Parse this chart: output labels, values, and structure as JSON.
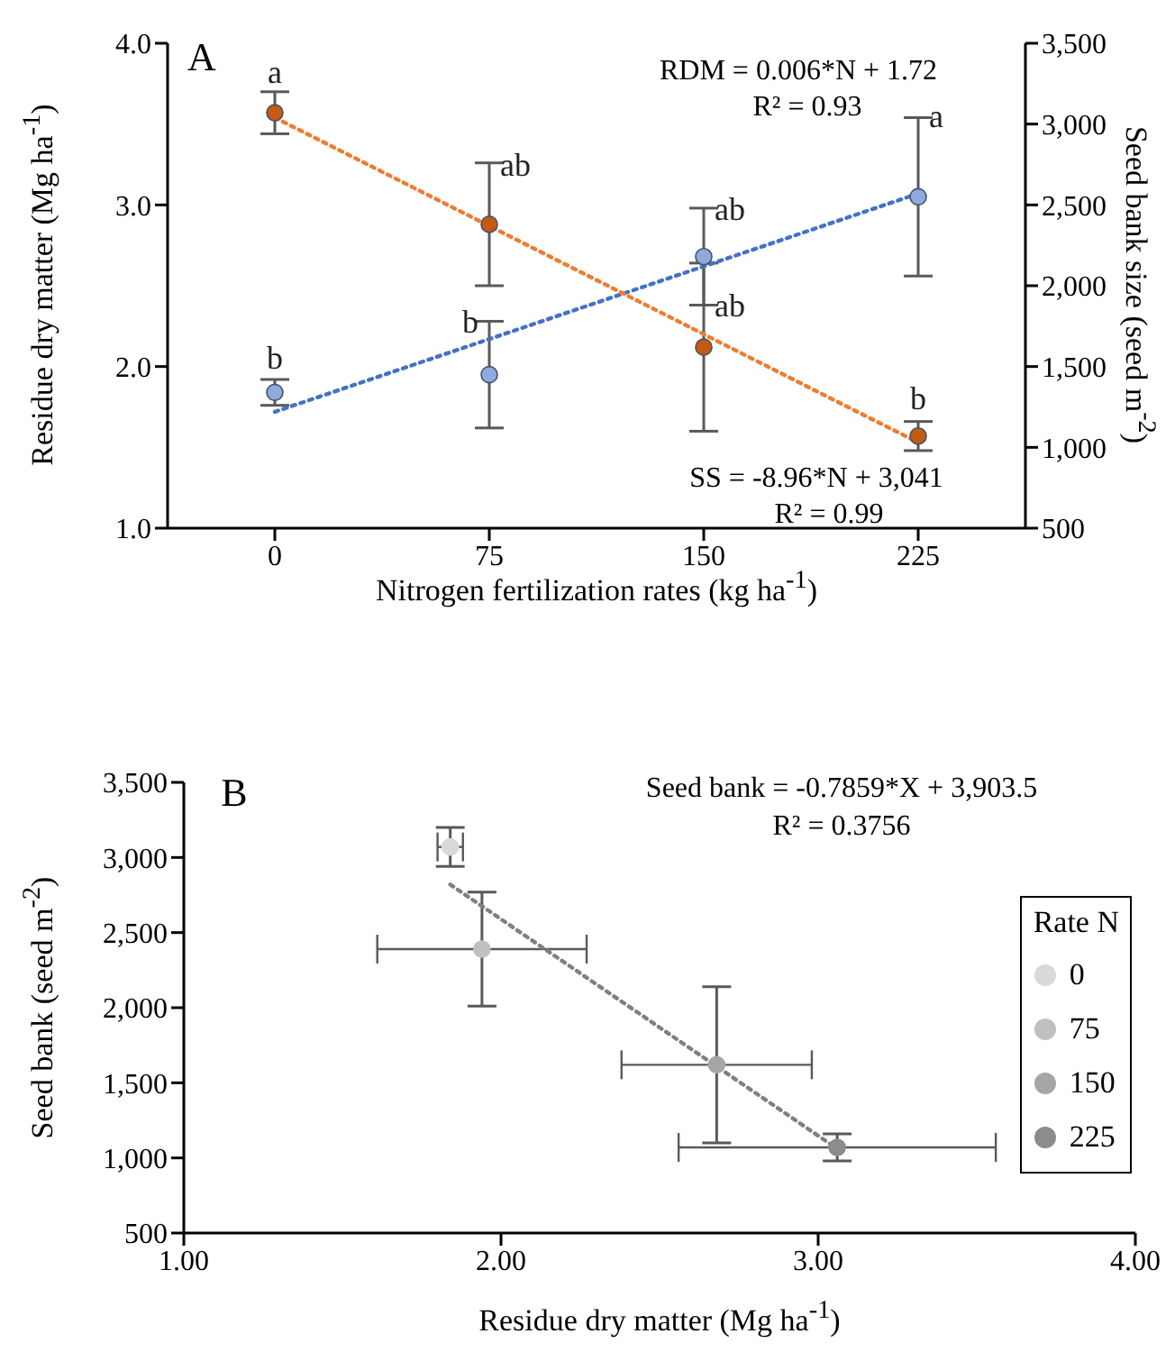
{
  "chart_data": [
    {
      "type": "scatter",
      "xlabel": "Nitrogen fertilization rates (kg ha$^{-1}$)",
      "ylabel": "Residue dry matter (Mg ha$^{-1}$)",
      "y2label": "Seed bank size (seed m$^{-2}$)",
      "x": [
        0,
        75,
        150,
        225
      ],
      "xlim": [
        -37.5,
        262.5
      ],
      "xticks": [
        0,
        75,
        150,
        225
      ],
      "ylim": [
        1,
        4
      ],
      "yticks": [
        {
          "value": 1,
          "label": "1.0"
        },
        {
          "value": 2,
          "label": "2.0"
        },
        {
          "value": 3,
          "label": "3.0"
        },
        {
          "value": 4,
          "label": "4.0"
        }
      ],
      "y2lim": [
        500,
        3500
      ],
      "y2ticks": [
        {
          "value": 500,
          "label": "500"
        },
        {
          "value": 1000,
          "label": "1,000"
        },
        {
          "value": 1500,
          "label": "1,500"
        },
        {
          "value": 2000,
          "label": "2,000"
        },
        {
          "value": 2500,
          "label": "2,500"
        },
        {
          "value": 3000,
          "label": "3,000"
        },
        {
          "value": 3500,
          "label": "3,500"
        }
      ],
      "legend": false,
      "series": [
        {
          "type": "line",
          "x": [
            0,
            225
          ],
          "values": [
            1.72,
            3.07
          ],
          "color": "#4472c4",
          "line_style": "dotted"
        },
        {
          "type": "line",
          "axis": "y2",
          "x": [
            0,
            225
          ],
          "values": [
            3040,
            1030
          ],
          "color": "#ed7d31",
          "line_style": "dotted"
        },
        {
          "values": [
            1.84,
            1.95,
            2.68,
            3.05
          ],
          "errors": [
            0.08,
            0.33,
            0.3,
            0.49
          ],
          "color": "#8faadc",
          "marker": "circle"
        },
        {
          "axis": "y2",
          "values": [
            3070,
            2380,
            1620,
            1070
          ],
          "errors": [
            130,
            380,
            520,
            90
          ],
          "color": "#c55a11",
          "marker": "circle"
        }
      ],
      "annotations": [
        "A",
        "RDM = 0.006*N + 1.72",
        "R² = 0.93",
        "SS = -8.96*N + 3,041",
        "R² = 0.99",
        {
          "text": "a",
          "x": 0,
          "y": 3.69
        },
        {
          "text": "b",
          "x": 0,
          "y": 1.92
        },
        {
          "text": "ab",
          "x": 75,
          "y": 3.25
        },
        {
          "text": "b",
          "x": 75,
          "y": 2.28
        },
        {
          "text": "ab",
          "x": 150,
          "y": 2.98
        },
        {
          "text": "ab",
          "x": 150,
          "y": 2.38
        },
        {
          "text": "a",
          "x": 225,
          "y": 3.55
        },
        {
          "text": "b",
          "x": 225,
          "y": 1.67
        }
      ]
    },
    {
      "type": "scatter",
      "xlabel": "Residue dry matter (Mg ha$^{-1}$)",
      "ylabel": "Seed bank (seed m$^{-2}$)",
      "legend_title": "Rate N",
      "legend": "right",
      "xlim": [
        1,
        4
      ],
      "xticks": [
        {
          "value": 1,
          "label": "1.00"
        },
        {
          "value": 2,
          "label": "2.00"
        },
        {
          "value": 3,
          "label": "3.00"
        },
        {
          "value": 4,
          "label": "4.00"
        }
      ],
      "ylim": [
        500,
        3500
      ],
      "yticks": [
        {
          "value": 500,
          "label": "500"
        },
        {
          "value": 1000,
          "label": "1,000"
        },
        {
          "value": 1500,
          "label": "1,500"
        },
        {
          "value": 2000,
          "label": "2,000"
        },
        {
          "value": 2500,
          "label": "2,500"
        },
        {
          "value": 3000,
          "label": "3,000"
        },
        {
          "value": 3500,
          "label": "3,500"
        }
      ],
      "series": [
        {
          "type": "line",
          "x": [
            1.84,
            3.04
          ],
          "values": [
            2820,
            1090
          ],
          "color": "#808080",
          "line_style": "dotted"
        },
        {
          "name": "0",
          "x": [
            1.84
          ],
          "values": [
            3070
          ],
          "errors": [
            130
          ],
          "xerrors": [
            0.04
          ],
          "color": "#d9d9d9",
          "marker": "circle"
        },
        {
          "name": "75",
          "x": [
            1.94
          ],
          "values": [
            2390
          ],
          "errors": [
            380
          ],
          "xerrors": [
            0.33
          ],
          "color": "#c0c0c0",
          "marker": "circle"
        },
        {
          "name": "150",
          "x": [
            2.68
          ],
          "values": [
            1620
          ],
          "errors": [
            520
          ],
          "xerrors": [
            0.3
          ],
          "color": "#a6a6a6",
          "marker": "circle"
        },
        {
          "name": "225",
          "x": [
            3.06
          ],
          "values": [
            1070
          ],
          "errors": [
            90
          ],
          "xerrors": [
            0.5
          ],
          "color": "#8c8c8c",
          "marker": "circle"
        }
      ],
      "annotations": [
        "B",
        "Seed bank = -0.7859*X + 3,903.5",
        "R² = 0.3756"
      ]
    }
  ]
}
